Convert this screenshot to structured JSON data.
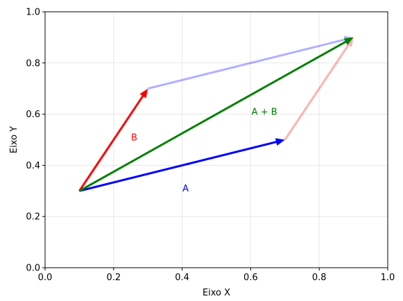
{
  "chart_data": {
    "type": "vector-plot",
    "xlabel": "Eixo X",
    "ylabel": "Eixo Y",
    "xlim": [
      0.0,
      1.0
    ],
    "ylim": [
      0.0,
      1.0
    ],
    "grid": true,
    "x_ticks": [
      "0.0",
      "0.2",
      "0.4",
      "0.6",
      "0.8",
      "1.0"
    ],
    "y_ticks": [
      "0.0",
      "0.2",
      "0.4",
      "0.6",
      "0.8",
      "1.0"
    ],
    "vectors": [
      {
        "id": "vector-a",
        "label": "A",
        "color": "#0000ff",
        "alpha": 1.0,
        "start": [
          0.1,
          0.3
        ],
        "end": [
          0.7,
          0.5
        ],
        "label_pos": [
          0.41,
          0.31
        ]
      },
      {
        "id": "vector-b",
        "label": "B",
        "color": "#ff0000",
        "alpha": 1.0,
        "start": [
          0.1,
          0.3
        ],
        "end": [
          0.3,
          0.7
        ],
        "label_pos": [
          0.26,
          0.51
        ]
      },
      {
        "id": "vector-a-plus-b",
        "label": "A + B",
        "color": "#008000",
        "alpha": 1.0,
        "start": [
          0.1,
          0.3
        ],
        "end": [
          0.9,
          0.9
        ],
        "label_pos": [
          0.64,
          0.61
        ]
      },
      {
        "id": "vector-a-translated",
        "label": "",
        "color": "#0000ff",
        "alpha": 0.3,
        "start": [
          0.3,
          0.7
        ],
        "end": [
          0.9,
          0.9
        ]
      },
      {
        "id": "vector-b-translated",
        "label": "",
        "color": "#ff0000",
        "alpha": 0.3,
        "start": [
          0.7,
          0.5
        ],
        "end": [
          0.9,
          0.9
        ]
      }
    ]
  }
}
